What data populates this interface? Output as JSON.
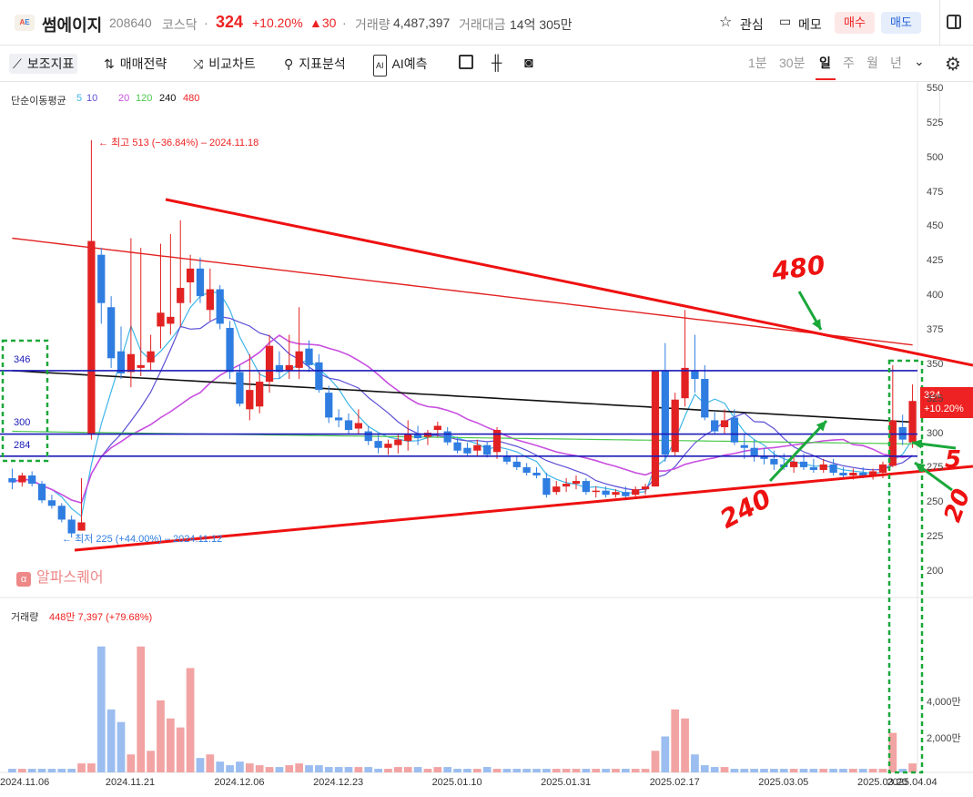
{
  "header": {
    "name": "썸에이지",
    "code": "208640",
    "market": "코스닥",
    "price": "324",
    "change_pct": "+10.20%",
    "change_abs": "▲30",
    "volume_label": "거래량",
    "volume": "4,487,397",
    "amount_label": "거래대금",
    "amount": "14억 305만",
    "favorite": "관심",
    "memo": "메모",
    "buy": "매수",
    "sell": "매도"
  },
  "toolbar": {
    "indicators": "보조지표",
    "strategy": "매매전략",
    "compare": "비교차트",
    "analysis": "지표분석",
    "ai": "AI예측",
    "periods": [
      "1분",
      "30분",
      "일",
      "주",
      "월",
      "년"
    ],
    "selected_period": "일"
  },
  "ma_legend": {
    "title": "단순이동평균",
    "items": [
      {
        "label": "5",
        "color": "#3fb6e8"
      },
      {
        "label": "10",
        "color": "#5b4fd6"
      },
      {
        "label": "20",
        "color": "#c84ee0"
      },
      {
        "label": "120",
        "color": "#4cc94c"
      },
      {
        "label": "240",
        "color": "#111111"
      },
      {
        "label": "480",
        "color": "#e22222"
      }
    ]
  },
  "annotations": {
    "high": "최고 513 (−36.84%) – 2024.11.18",
    "low": "최저 225 (+44.00%) – 2024.11.12",
    "level_346": "346",
    "level_300": "300",
    "level_284": "284",
    "hand_480": "480",
    "hand_240": "240",
    "hand_5": "5",
    "hand_20": "20",
    "watermark": "알파스퀘어",
    "watermark_icon": "α"
  },
  "price_tag": {
    "price": "324",
    "change": "+10.20%"
  },
  "volume_legend": {
    "label": "거래량",
    "value": "448만 7,397 (+79.68%)"
  },
  "colors": {
    "up": "#e22222",
    "down": "#2f7de1",
    "vol_up": "#f2a3a3",
    "vol_down": "#9bbdf0"
  },
  "chart_data": {
    "type": "candlestick",
    "ylim": [
      200,
      550
    ],
    "y_ticks": [
      "550",
      "525",
      "500",
      "475",
      "450",
      "425",
      "400",
      "375",
      "350",
      "325",
      "300",
      "275",
      "250",
      "225",
      "200"
    ],
    "volume_ticks": [
      "4,000만",
      "2,000만"
    ],
    "x_tick_labels": [
      "2024.11.06",
      "2024.11.21",
      "2024.12.06",
      "2024.12.23",
      "2025.01.10",
      "2025.01.31",
      "2025.02.17",
      "2025.03.05",
      "2025.03.20",
      "2025.04.04"
    ],
    "horizontal_levels": [
      346,
      300,
      284
    ],
    "candles": [
      {
        "o": 268,
        "h": 275,
        "l": 260,
        "c": 265
      },
      {
        "o": 265,
        "h": 272,
        "l": 262,
        "c": 270
      },
      {
        "o": 270,
        "h": 273,
        "l": 262,
        "c": 264
      },
      {
        "o": 264,
        "h": 266,
        "l": 250,
        "c": 252
      },
      {
        "o": 252,
        "h": 256,
        "l": 246,
        "c": 248
      },
      {
        "o": 248,
        "h": 250,
        "l": 236,
        "c": 238
      },
      {
        "o": 238,
        "h": 241,
        "l": 225,
        "c": 228
      },
      {
        "o": 230,
        "h": 268,
        "l": 230,
        "c": 236
      },
      {
        "o": 300,
        "h": 513,
        "l": 296,
        "c": 440
      },
      {
        "o": 430,
        "h": 435,
        "l": 380,
        "c": 395
      },
      {
        "o": 392,
        "h": 400,
        "l": 348,
        "c": 355
      },
      {
        "o": 360,
        "h": 378,
        "l": 340,
        "c": 344
      },
      {
        "o": 345,
        "h": 442,
        "l": 334,
        "c": 358
      },
      {
        "o": 348,
        "h": 435,
        "l": 342,
        "c": 350
      },
      {
        "o": 352,
        "h": 372,
        "l": 346,
        "c": 360
      },
      {
        "o": 378,
        "h": 438,
        "l": 362,
        "c": 388
      },
      {
        "o": 380,
        "h": 445,
        "l": 372,
        "c": 385
      },
      {
        "o": 395,
        "h": 455,
        "l": 378,
        "c": 406
      },
      {
        "o": 410,
        "h": 430,
        "l": 395,
        "c": 420
      },
      {
        "o": 420,
        "h": 428,
        "l": 395,
        "c": 400
      },
      {
        "o": 390,
        "h": 420,
        "l": 382,
        "c": 405
      },
      {
        "o": 405,
        "h": 408,
        "l": 376,
        "c": 380
      },
      {
        "o": 377,
        "h": 382,
        "l": 340,
        "c": 345
      },
      {
        "o": 345,
        "h": 350,
        "l": 320,
        "c": 322
      },
      {
        "o": 318,
        "h": 358,
        "l": 310,
        "c": 332
      },
      {
        "o": 320,
        "h": 345,
        "l": 315,
        "c": 338
      },
      {
        "o": 338,
        "h": 372,
        "l": 330,
        "c": 364
      },
      {
        "o": 350,
        "h": 360,
        "l": 340,
        "c": 345
      },
      {
        "o": 346,
        "h": 372,
        "l": 340,
        "c": 350
      },
      {
        "o": 348,
        "h": 392,
        "l": 340,
        "c": 360
      },
      {
        "o": 362,
        "h": 368,
        "l": 345,
        "c": 350
      },
      {
        "o": 352,
        "h": 358,
        "l": 330,
        "c": 332
      },
      {
        "o": 330,
        "h": 335,
        "l": 308,
        "c": 312
      },
      {
        "o": 312,
        "h": 318,
        "l": 305,
        "c": 310
      },
      {
        "o": 310,
        "h": 315,
        "l": 300,
        "c": 303
      },
      {
        "o": 304,
        "h": 318,
        "l": 300,
        "c": 308
      },
      {
        "o": 302,
        "h": 306,
        "l": 292,
        "c": 295
      },
      {
        "o": 295,
        "h": 300,
        "l": 286,
        "c": 290
      },
      {
        "o": 290,
        "h": 296,
        "l": 285,
        "c": 293
      },
      {
        "o": 292,
        "h": 300,
        "l": 286,
        "c": 296
      },
      {
        "o": 295,
        "h": 310,
        "l": 288,
        "c": 300
      },
      {
        "o": 300,
        "h": 306,
        "l": 292,
        "c": 297
      },
      {
        "o": 298,
        "h": 303,
        "l": 292,
        "c": 301
      },
      {
        "o": 303,
        "h": 309,
        "l": 298,
        "c": 306
      },
      {
        "o": 302,
        "h": 305,
        "l": 292,
        "c": 294
      },
      {
        "o": 294,
        "h": 298,
        "l": 286,
        "c": 288
      },
      {
        "o": 290,
        "h": 294,
        "l": 284,
        "c": 286
      },
      {
        "o": 288,
        "h": 296,
        "l": 284,
        "c": 292
      },
      {
        "o": 292,
        "h": 294,
        "l": 283,
        "c": 285
      },
      {
        "o": 287,
        "h": 305,
        "l": 282,
        "c": 303
      },
      {
        "o": 284,
        "h": 288,
        "l": 278,
        "c": 280
      },
      {
        "o": 280,
        "h": 284,
        "l": 274,
        "c": 276
      },
      {
        "o": 276,
        "h": 279,
        "l": 270,
        "c": 272
      },
      {
        "o": 272,
        "h": 276,
        "l": 268,
        "c": 270
      },
      {
        "o": 268,
        "h": 272,
        "l": 254,
        "c": 256
      },
      {
        "o": 258,
        "h": 266,
        "l": 256,
        "c": 262
      },
      {
        "o": 262,
        "h": 268,
        "l": 258,
        "c": 264
      },
      {
        "o": 264,
        "h": 270,
        "l": 260,
        "c": 266
      },
      {
        "o": 266,
        "h": 268,
        "l": 256,
        "c": 258
      },
      {
        "o": 258,
        "h": 262,
        "l": 254,
        "c": 259
      },
      {
        "o": 259,
        "h": 262,
        "l": 254,
        "c": 256
      },
      {
        "o": 256,
        "h": 260,
        "l": 254,
        "c": 258
      },
      {
        "o": 258,
        "h": 262,
        "l": 252,
        "c": 255
      },
      {
        "o": 256,
        "h": 262,
        "l": 254,
        "c": 260
      },
      {
        "o": 260,
        "h": 264,
        "l": 256,
        "c": 262
      },
      {
        "o": 262,
        "h": 346,
        "l": 262,
        "c": 346
      },
      {
        "o": 346,
        "h": 366,
        "l": 280,
        "c": 285
      },
      {
        "o": 287,
        "h": 330,
        "l": 284,
        "c": 325
      },
      {
        "o": 326,
        "h": 390,
        "l": 320,
        "c": 348
      },
      {
        "o": 346,
        "h": 372,
        "l": 330,
        "c": 340
      },
      {
        "o": 340,
        "h": 350,
        "l": 310,
        "c": 312
      },
      {
        "o": 310,
        "h": 316,
        "l": 300,
        "c": 302
      },
      {
        "o": 305,
        "h": 318,
        "l": 300,
        "c": 310
      },
      {
        "o": 312,
        "h": 318,
        "l": 292,
        "c": 294
      },
      {
        "o": 292,
        "h": 300,
        "l": 282,
        "c": 290
      },
      {
        "o": 290,
        "h": 296,
        "l": 280,
        "c": 284
      },
      {
        "o": 284,
        "h": 290,
        "l": 278,
        "c": 282
      },
      {
        "o": 282,
        "h": 288,
        "l": 274,
        "c": 278
      },
      {
        "o": 278,
        "h": 286,
        "l": 274,
        "c": 276
      },
      {
        "o": 276,
        "h": 284,
        "l": 272,
        "c": 280
      },
      {
        "o": 280,
        "h": 286,
        "l": 274,
        "c": 276
      },
      {
        "o": 276,
        "h": 282,
        "l": 272,
        "c": 274
      },
      {
        "o": 274,
        "h": 282,
        "l": 272,
        "c": 278
      },
      {
        "o": 278,
        "h": 282,
        "l": 270,
        "c": 272
      },
      {
        "o": 272,
        "h": 276,
        "l": 268,
        "c": 270
      },
      {
        "o": 270,
        "h": 275,
        "l": 267,
        "c": 272
      },
      {
        "o": 272,
        "h": 276,
        "l": 268,
        "c": 270
      },
      {
        "o": 270,
        "h": 275,
        "l": 267,
        "c": 273
      },
      {
        "o": 272,
        "h": 280,
        "l": 268,
        "c": 278
      },
      {
        "o": 277,
        "h": 350,
        "l": 276,
        "c": 310
      },
      {
        "o": 305,
        "h": 314,
        "l": 292,
        "c": 296
      },
      {
        "o": 294,
        "h": 336,
        "l": 290,
        "c": 324
      }
    ],
    "volume": [
      2,
      2,
      2,
      2,
      2,
      2,
      2,
      5,
      5,
      70,
      35,
      28,
      10,
      70,
      12,
      40,
      30,
      25,
      58,
      8,
      10,
      6,
      4,
      6,
      5,
      4,
      3,
      3,
      4,
      5,
      4,
      4,
      3,
      3,
      3,
      3,
      3,
      2,
      2,
      3,
      3,
      3,
      2,
      3,
      3,
      2,
      2,
      2,
      3,
      2,
      2,
      2,
      2,
      2,
      2,
      2,
      2,
      2,
      2,
      2,
      2,
      2,
      2,
      2,
      2,
      12,
      20,
      35,
      30,
      10,
      4,
      3,
      3,
      2,
      2,
      2,
      2,
      2,
      2,
      2,
      2,
      2,
      2,
      2,
      2,
      2,
      2,
      2,
      2,
      22,
      2,
      5
    ]
  }
}
